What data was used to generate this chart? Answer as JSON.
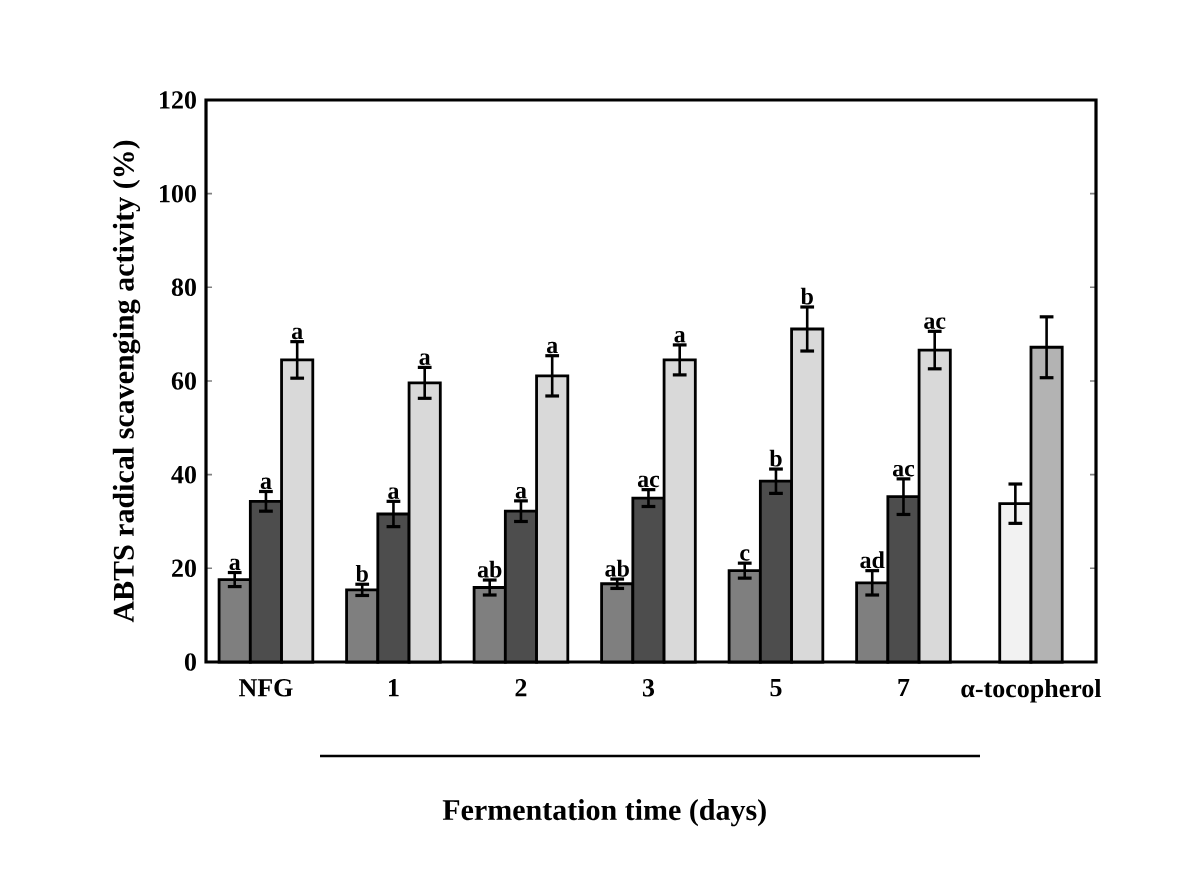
{
  "chart_data": {
    "type": "bar",
    "xlabel": "Fermentation time (days)",
    "ylabel": "ABTS radical scavenging activity (%)",
    "categories": [
      "NFG",
      "1",
      "2",
      "3",
      "5",
      "7",
      "α-tocopherol"
    ],
    "ylim": [
      0,
      120
    ],
    "yticks": [
      0,
      20,
      40,
      60,
      80,
      100,
      120
    ],
    "grid": false,
    "series": [
      {
        "color": "#7f7f7f",
        "values": [
          17.6,
          15.4,
          15.9,
          16.7,
          19.5,
          16.9,
          null
        ],
        "errors": [
          1.5,
          1.2,
          1.6,
          1.0,
          1.6,
          2.6,
          null
        ],
        "value_labels": [
          "a",
          "b",
          "ab",
          "ab",
          "c",
          "ad",
          null
        ]
      },
      {
        "color": "#4d4d4d",
        "values": [
          34.3,
          31.6,
          32.2,
          35.0,
          38.6,
          35.3,
          null
        ],
        "errors": [
          2.1,
          2.7,
          2.2,
          1.8,
          2.6,
          3.8,
          null
        ],
        "value_labels": [
          "a",
          "a",
          "a",
          "ac",
          "b",
          "ac",
          null
        ]
      },
      {
        "color": "#d9d9d9",
        "values": [
          64.5,
          59.6,
          61.1,
          64.5,
          71.1,
          66.6,
          null
        ],
        "errors": [
          3.9,
          3.3,
          4.3,
          3.2,
          4.7,
          4.0,
          null
        ],
        "value_labels": [
          "a",
          "a",
          "a",
          "a",
          "b",
          "ac",
          null
        ]
      },
      {
        "color": "#f2f2f2",
        "values": [
          null,
          null,
          null,
          null,
          null,
          null,
          33.8
        ],
        "errors": [
          null,
          null,
          null,
          null,
          null,
          null,
          4.2
        ]
      },
      {
        "color": "#b3b3b3",
        "values": [
          null,
          null,
          null,
          null,
          null,
          null,
          67.2
        ],
        "errors": [
          null,
          null,
          null,
          null,
          null,
          null,
          6.5
        ]
      }
    ]
  }
}
